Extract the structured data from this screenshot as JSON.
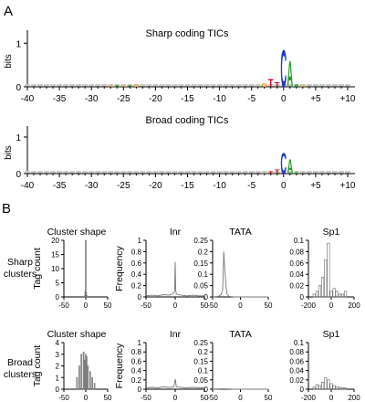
{
  "panel_a": {
    "letter": "A",
    "logo_sharp": {
      "title": "Sharp coding TICs",
      "ylabel": "bits",
      "yticks": [
        "1",
        "0"
      ]
    },
    "logo_broad": {
      "title": "Broad coding TICs",
      "ylabel": "bits",
      "yticks": [
        "1",
        "0"
      ]
    },
    "xticks": [
      "-40",
      "-35",
      "-30",
      "-25",
      "-20",
      "-15",
      "-10",
      "-5",
      "0",
      "+5",
      "+10"
    ]
  },
  "panel_b": {
    "letter": "B",
    "row_labels": {
      "sharp": [
        "Sharp",
        "clusters"
      ],
      "broad": [
        "Broad",
        "clusters"
      ]
    },
    "col_titles": [
      "Cluster shape",
      "Inr",
      "TATA",
      "Sp1"
    ],
    "ylabel_shape": "Tag count",
    "ylabel_freq": "Frequency",
    "cs_x": [
      "-50",
      "0",
      "50"
    ],
    "inr_x": [
      "-50",
      "0",
      "50"
    ],
    "tata_x": [
      "-50",
      "0",
      "50"
    ],
    "sp1_x": [
      "-200",
      "0",
      "200"
    ],
    "sharp_cs_y": [
      "20",
      "15",
      "10",
      "5",
      "0"
    ],
    "sharp_inr_y": [
      "1",
      "0.8",
      "0.6",
      "0.4",
      "0.2",
      "0"
    ],
    "sharp_tata_y": [
      "0.25",
      "0.2",
      "0.15",
      "0.1",
      "0.05",
      "0"
    ],
    "sharp_sp1_y": [
      "0.1",
      "0.08",
      "0.06",
      "0.04",
      "0.02",
      "0"
    ],
    "broad_cs_y": [
      "4",
      "3",
      "2",
      "1",
      "0"
    ],
    "broad_inr_y": [
      "1",
      "0.8",
      "0.6",
      "0.4",
      "0.2",
      "0"
    ],
    "broad_tata_y": [
      "0.25",
      "0.2",
      "0.15",
      "0.1",
      "0.05",
      "0"
    ],
    "broad_sp1_y": [
      "0.1",
      "0.08",
      "0.06",
      "0.04",
      "0.02",
      "0"
    ]
  },
  "colors": {
    "A": "#2ca02c",
    "C": "#1f3fbf",
    "G": "#f5a623",
    "T": "#d0021b",
    "axis": "#000000",
    "bar": "#999999"
  },
  "chart_data": [
    {
      "type": "bar",
      "title": "Sharp coding TICs",
      "ylabel": "bits",
      "xlim": [
        -40,
        10
      ],
      "ylim": [
        0,
        1.3
      ],
      "x": [
        -4,
        -3,
        -2,
        -1,
        0,
        1,
        2,
        3,
        -27,
        -26,
        -25,
        -24,
        -23
      ],
      "values": [
        0.02,
        0.12,
        0.25,
        0.15,
        1.2,
        0.85,
        0.1,
        0.05,
        0.03,
        0.06,
        0.04,
        0.05,
        0.08
      ]
    },
    {
      "type": "bar",
      "title": "Broad coding TICs",
      "ylabel": "bits",
      "xlim": [
        -40,
        10
      ],
      "ylim": [
        0,
        1.3
      ],
      "x": [
        -3,
        -2,
        -1,
        0,
        1,
        2
      ],
      "values": [
        0.03,
        0.1,
        0.15,
        0.8,
        0.55,
        0.05
      ]
    },
    {
      "type": "bar",
      "title": "Cluster shape",
      "series_label": "Sharp clusters",
      "ylabel": "Tag count",
      "xlim": [
        -50,
        50
      ],
      "ylim": [
        0,
        20
      ],
      "x": [
        -2,
        -1,
        0,
        1,
        2
      ],
      "values": [
        0.5,
        2,
        20,
        1.5,
        0.5
      ]
    },
    {
      "type": "line",
      "title": "Inr",
      "series_label": "Sharp clusters",
      "ylabel": "Frequency",
      "xlim": [
        -50,
        50
      ],
      "ylim": [
        0,
        1
      ],
      "x": [
        -50,
        -40,
        -30,
        -20,
        -10,
        -5,
        -2,
        -1,
        0,
        1,
        2,
        5,
        10,
        20,
        30,
        40,
        50
      ],
      "values": [
        0.02,
        0.03,
        0.02,
        0.04,
        0.03,
        0.05,
        0.08,
        0.1,
        0.62,
        0.12,
        0.05,
        0.04,
        0.03,
        0.02,
        0.03,
        0.02,
        0.02
      ]
    },
    {
      "type": "line",
      "title": "TATA",
      "series_label": "Sharp clusters",
      "ylabel": "Frequency",
      "xlim": [
        -50,
        50
      ],
      "ylim": [
        0,
        0.25
      ],
      "x": [
        -50,
        -40,
        -35,
        -32,
        -30,
        -28,
        -26,
        -24,
        -20,
        -10,
        0,
        10,
        20,
        30,
        40,
        50
      ],
      "values": [
        0,
        0.002,
        0.01,
        0.03,
        0.2,
        0.12,
        0.05,
        0.01,
        0.002,
        0,
        0,
        0,
        0,
        0,
        0,
        0
      ]
    },
    {
      "type": "bar",
      "title": "Sp1",
      "series_label": "Sharp clusters",
      "ylabel": "Frequency",
      "xlim": [
        -200,
        200
      ],
      "ylim": [
        0,
        0.1
      ],
      "x": [
        -150,
        -125,
        -100,
        -75,
        -50,
        -25,
        0,
        25,
        50,
        75,
        100,
        125
      ],
      "values": [
        0.005,
        0.01,
        0.02,
        0.035,
        0.065,
        0.095,
        0.01,
        0.015,
        0.01,
        0.005,
        0.005,
        0.01
      ]
    },
    {
      "type": "bar",
      "title": "Cluster shape",
      "series_label": "Broad clusters",
      "ylabel": "Tag count",
      "xlim": [
        -50,
        50
      ],
      "ylim": [
        0,
        4
      ],
      "x": [
        -20,
        -15,
        -10,
        -5,
        -2,
        0,
        2,
        5,
        10,
        15,
        20
      ],
      "values": [
        1,
        2,
        3,
        3.2,
        2.5,
        3,
        2.8,
        2,
        1.5,
        1,
        0.5
      ]
    },
    {
      "type": "line",
      "title": "Inr",
      "series_label": "Broad clusters",
      "ylabel": "Frequency",
      "xlim": [
        -50,
        50
      ],
      "ylim": [
        0,
        1
      ],
      "x": [
        -50,
        -40,
        -30,
        -20,
        -10,
        -2,
        0,
        2,
        10,
        20,
        30,
        40,
        50
      ],
      "values": [
        0.03,
        0.04,
        0.03,
        0.05,
        0.04,
        0.05,
        0.22,
        0.05,
        0.04,
        0.03,
        0.04,
        0.03,
        0.03
      ]
    },
    {
      "type": "line",
      "title": "TATA",
      "series_label": "Broad clusters",
      "ylabel": "Frequency",
      "xlim": [
        -50,
        50
      ],
      "ylim": [
        0,
        0.25
      ],
      "x": [
        -50,
        -30,
        -10,
        10,
        30,
        50
      ],
      "values": [
        0,
        0.002,
        0,
        0,
        0,
        0
      ]
    },
    {
      "type": "bar",
      "title": "Sp1",
      "series_label": "Broad clusters",
      "ylabel": "Frequency",
      "xlim": [
        -200,
        200
      ],
      "ylim": [
        0,
        0.1
      ],
      "x": [
        -150,
        -125,
        -100,
        -75,
        -50,
        -25,
        0,
        25,
        50,
        75,
        100,
        125
      ],
      "values": [
        0.005,
        0.01,
        0.008,
        0.015,
        0.025,
        0.02,
        0.012,
        0.008,
        0.005,
        0.004,
        0.003,
        0.003
      ]
    }
  ]
}
